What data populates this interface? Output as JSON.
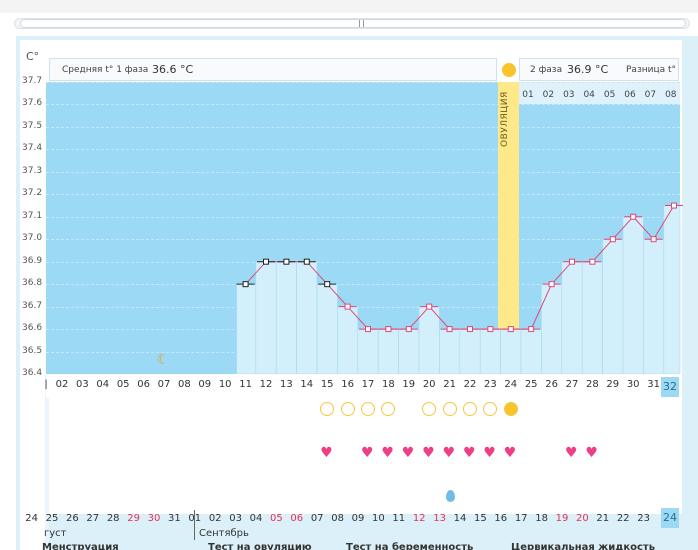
{
  "unit": "C°",
  "info": {
    "phase1_label": "Средняя t° 1 фаза",
    "phase1_value": "36.6 °C",
    "phase2_label": "2 фаза",
    "phase2_value": "36.9 °C",
    "diff_label": "Разница t°"
  },
  "ovulation_label": "ОВУЛЯЦИЯ",
  "day_box_bottom": "24",
  "day_box_axis": "32",
  "top_days": [
    "01",
    "02",
    "03",
    "04",
    "05",
    "06",
    "07",
    "08"
  ],
  "x_labels": [
    "02",
    "03",
    "04",
    "05",
    "06",
    "07",
    "08",
    "09",
    "10",
    "11",
    "12",
    "13",
    "14",
    "15",
    "16",
    "17",
    "18",
    "19",
    "20",
    "21",
    "22",
    "23",
    "24",
    "25",
    "26",
    "27",
    "28",
    "29",
    "30",
    "31"
  ],
  "bottom_dates": [
    {
      "t": "24",
      "red": false
    },
    {
      "t": "25",
      "red": false
    },
    {
      "t": "26",
      "red": false
    },
    {
      "t": "27",
      "red": false
    },
    {
      "t": "28",
      "red": false
    },
    {
      "t": "29",
      "red": true
    },
    {
      "t": "30",
      "red": true
    },
    {
      "t": "31",
      "red": false
    },
    {
      "t": "01",
      "red": false
    },
    {
      "t": "02",
      "red": false
    },
    {
      "t": "03",
      "red": false
    },
    {
      "t": "04",
      "red": false
    },
    {
      "t": "05",
      "red": true
    },
    {
      "t": "06",
      "red": true
    },
    {
      "t": "07",
      "red": false
    },
    {
      "t": "08",
      "red": false
    },
    {
      "t": "09",
      "red": false
    },
    {
      "t": "10",
      "red": false
    },
    {
      "t": "11",
      "red": false
    },
    {
      "t": "12",
      "red": true
    },
    {
      "t": "13",
      "red": true
    },
    {
      "t": "14",
      "red": false
    },
    {
      "t": "15",
      "red": false
    },
    {
      "t": "16",
      "red": false
    },
    {
      "t": "17",
      "red": false
    },
    {
      "t": "18",
      "red": false
    },
    {
      "t": "19",
      "red": true
    },
    {
      "t": "20",
      "red": true
    },
    {
      "t": "21",
      "red": false
    },
    {
      "t": "22",
      "red": false
    },
    {
      "t": "23",
      "red": false
    }
  ],
  "months": {
    "august": "густ",
    "september": "Сентябрь"
  },
  "bottom_headers": [
    "Менструация",
    "Тест на овуляцию",
    "Тест на беременность",
    "Цервикальная жидкость"
  ],
  "chart_data": {
    "type": "line",
    "ylabel": "C°",
    "ylim": [
      36.4,
      37.7
    ],
    "y_ticks": [
      "36.4",
      "36.5",
      "36.6",
      "36.7",
      "36.8",
      "36.9",
      "37.0",
      "37.1",
      "37.2",
      "37.3",
      "37.4",
      "37.5",
      "37.6",
      "37.7"
    ],
    "cycle_days": [
      11,
      12,
      13,
      14,
      15,
      16,
      17,
      18,
      19,
      20,
      21,
      22,
      23,
      24,
      25,
      26,
      27,
      28,
      29,
      30,
      31,
      32
    ],
    "temperatures": [
      36.8,
      36.9,
      36.9,
      36.9,
      36.8,
      36.7,
      36.6,
      36.6,
      36.6,
      36.7,
      36.6,
      36.6,
      36.6,
      36.6,
      36.6,
      36.8,
      36.9,
      36.9,
      37.0,
      37.1,
      37.0,
      37.15
    ],
    "black_marker_days": [
      11,
      12,
      13,
      14,
      15
    ],
    "coverline": 36.6,
    "ovulation_day": 24,
    "ovulation_test_days": [
      15,
      16,
      17,
      18,
      20,
      21,
      22,
      23,
      24
    ],
    "ovulation_test_positive_day": 24,
    "intercourse_days": [
      15,
      17,
      18,
      19,
      20,
      21,
      22,
      23,
      24,
      27,
      28
    ],
    "cervical_fluid_days": [
      21
    ],
    "moon_day": 7
  }
}
